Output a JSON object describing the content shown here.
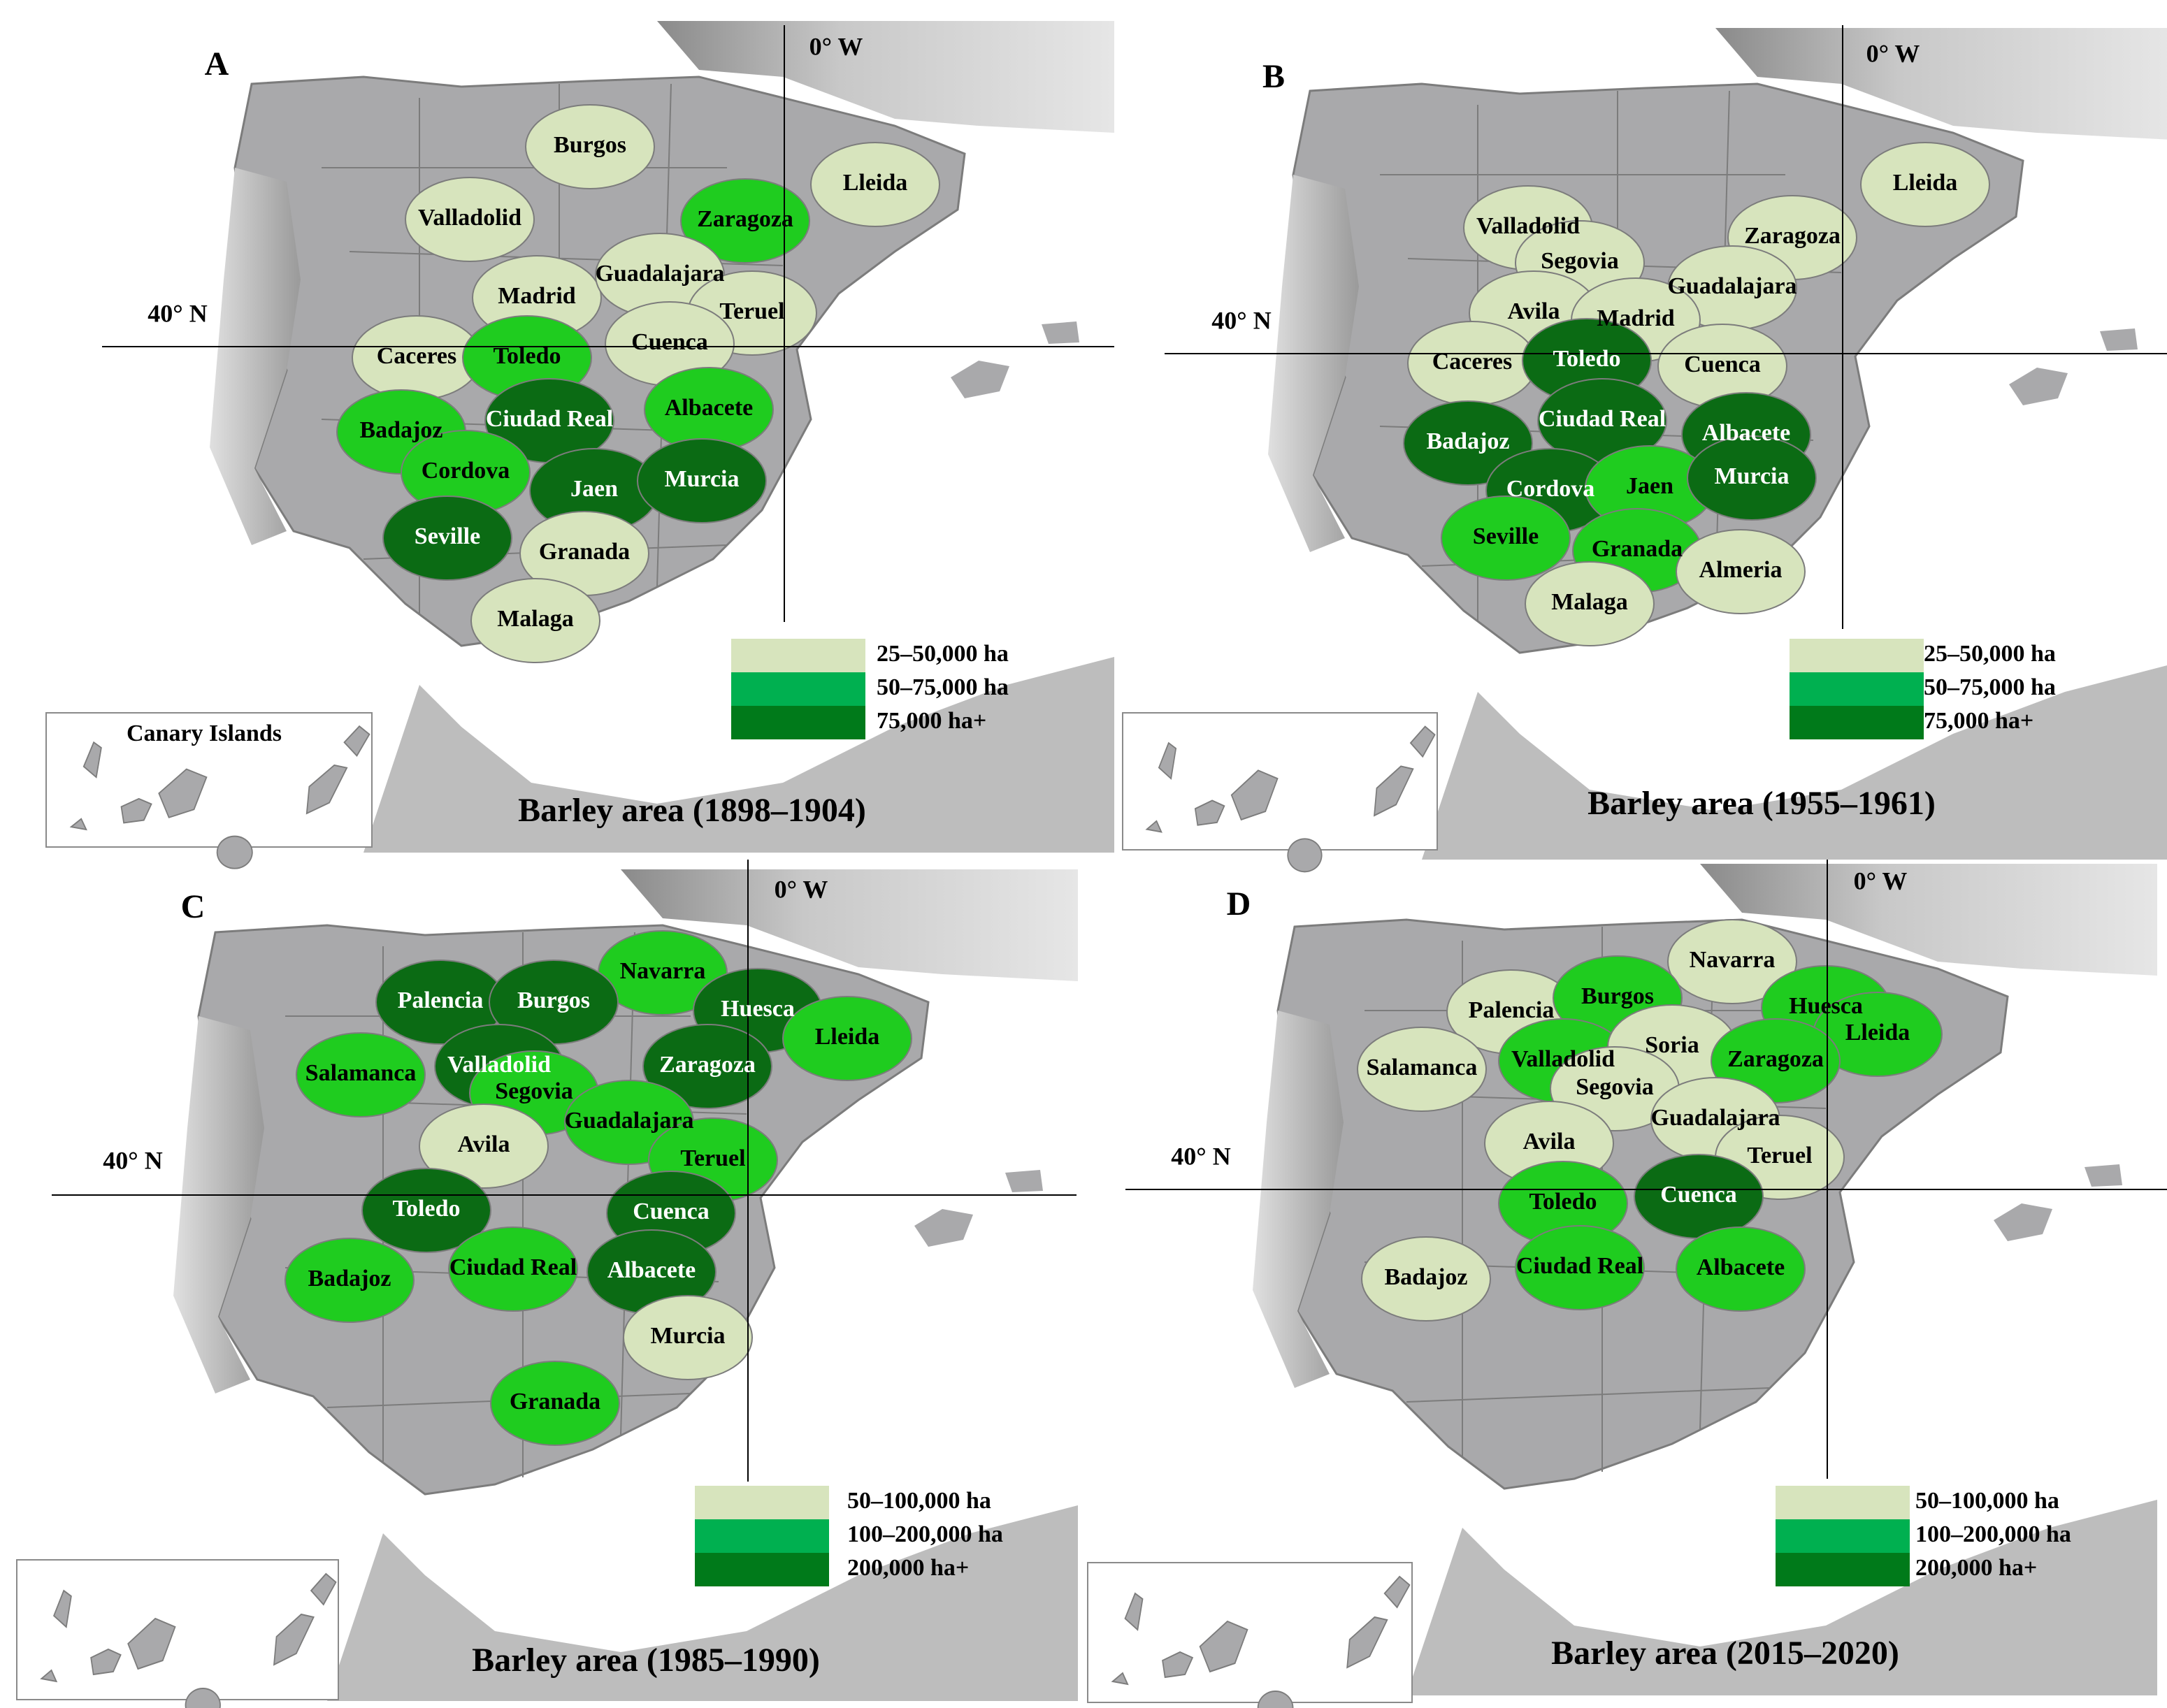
{
  "panels": [
    {
      "label": "A",
      "title": "Barley area (1898–1904)",
      "meridian_label": "0° W",
      "parallel_label": "40° N",
      "inset_label": "Canary Islands",
      "legend": [
        {
          "label": "25–50,000 ha",
          "color": "#d7e4bd"
        },
        {
          "label": "50–75,000 ha",
          "color": "#00b050"
        },
        {
          "label": "75,000 ha+",
          "color": "#007a1a"
        }
      ],
      "regions": [
        {
          "name": "Burgos",
          "color": "#d7e4bd"
        },
        {
          "name": "Lleida",
          "color": "#d7e4bd"
        },
        {
          "name": "Valladolid",
          "color": "#d7e4bd"
        },
        {
          "name": "Zaragoza",
          "color": "#1fcc1f"
        },
        {
          "name": "Madrid",
          "color": "#d7e4bd"
        },
        {
          "name": "Guadalajara",
          "color": "#d7e4bd"
        },
        {
          "name": "Teruel",
          "color": "#d7e4bd"
        },
        {
          "name": "Caceres",
          "color": "#d7e4bd"
        },
        {
          "name": "Toledo",
          "color": "#1fcc1f"
        },
        {
          "name": "Cuenca",
          "color": "#d7e4bd"
        },
        {
          "name": "Badajoz",
          "color": "#1fcc1f"
        },
        {
          "name": "Ciudad Real",
          "color": "#0b6b14"
        },
        {
          "name": "Albacete",
          "color": "#1fcc1f"
        },
        {
          "name": "Cordova",
          "color": "#1fcc1f"
        },
        {
          "name": "Jaen",
          "color": "#0b6b14"
        },
        {
          "name": "Murcia",
          "color": "#0b6b14"
        },
        {
          "name": "Seville",
          "color": "#0b6b14"
        },
        {
          "name": "Granada",
          "color": "#d7e4bd"
        },
        {
          "name": "Malaga",
          "color": "#d7e4bd"
        }
      ]
    },
    {
      "label": "B",
      "title": "Barley area (1955–1961)",
      "meridian_label": "0° W",
      "parallel_label": "40° N",
      "legend": [
        {
          "label": "25–50,000 ha",
          "color": "#d7e4bd"
        },
        {
          "label": "50–75,000 ha",
          "color": "#00b050"
        },
        {
          "label": "75,000 ha+",
          "color": "#007a1a"
        }
      ],
      "regions": [
        {
          "name": "Lleida",
          "color": "#d7e4bd"
        },
        {
          "name": "Valladolid",
          "color": "#d7e4bd"
        },
        {
          "name": "Zaragoza",
          "color": "#d7e4bd"
        },
        {
          "name": "Segovia",
          "color": "#d7e4bd"
        },
        {
          "name": "Guadalajara",
          "color": "#d7e4bd"
        },
        {
          "name": "Avila",
          "color": "#d7e4bd"
        },
        {
          "name": "Madrid",
          "color": "#d7e4bd"
        },
        {
          "name": "Caceres",
          "color": "#d7e4bd"
        },
        {
          "name": "Toledo",
          "color": "#0b6b14"
        },
        {
          "name": "Cuenca",
          "color": "#d7e4bd"
        },
        {
          "name": "Ciudad Real",
          "color": "#0b6b14"
        },
        {
          "name": "Badajoz",
          "color": "#0b6b14"
        },
        {
          "name": "Albacete",
          "color": "#0b6b14"
        },
        {
          "name": "Cordova",
          "color": "#0b6b14"
        },
        {
          "name": "Jaen",
          "color": "#1fcc1f"
        },
        {
          "name": "Murcia",
          "color": "#0b6b14"
        },
        {
          "name": "Seville",
          "color": "#1fcc1f"
        },
        {
          "name": "Granada",
          "color": "#1fcc1f"
        },
        {
          "name": "Almeria",
          "color": "#d7e4bd"
        },
        {
          "name": "Malaga",
          "color": "#d7e4bd"
        }
      ]
    },
    {
      "label": "C",
      "title": "Barley area (1985–1990)",
      "meridian_label": "0° W",
      "parallel_label": "40° N",
      "legend": [
        {
          "label": "50–100,000 ha",
          "color": "#d7e4bd"
        },
        {
          "label": "100–200,000 ha",
          "color": "#00b050"
        },
        {
          "label": "200,000 ha+",
          "color": "#007a1a"
        }
      ],
      "regions": [
        {
          "name": "Navarra",
          "color": "#1fcc1f"
        },
        {
          "name": "Palencia",
          "color": "#0b6b14"
        },
        {
          "name": "Burgos",
          "color": "#0b6b14"
        },
        {
          "name": "Huesca",
          "color": "#0b6b14"
        },
        {
          "name": "Lleida",
          "color": "#1fcc1f"
        },
        {
          "name": "Salamanca",
          "color": "#1fcc1f"
        },
        {
          "name": "Valladolid",
          "color": "#0b6b14"
        },
        {
          "name": "Segovia",
          "color": "#1fcc1f"
        },
        {
          "name": "Zaragoza",
          "color": "#0b6b14"
        },
        {
          "name": "Guadalajara",
          "color": "#1fcc1f"
        },
        {
          "name": "Avila",
          "color": "#d7e4bd"
        },
        {
          "name": "Teruel",
          "color": "#1fcc1f"
        },
        {
          "name": "Toledo",
          "color": "#0b6b14"
        },
        {
          "name": "Cuenca",
          "color": "#0b6b14"
        },
        {
          "name": "Badajoz",
          "color": "#1fcc1f"
        },
        {
          "name": "Ciudad Real",
          "color": "#1fcc1f"
        },
        {
          "name": "Albacete",
          "color": "#0b6b14"
        },
        {
          "name": "Murcia",
          "color": "#d7e4bd"
        },
        {
          "name": "Granada",
          "color": "#1fcc1f"
        }
      ]
    },
    {
      "label": "D",
      "title": "Barley area (2015–2020)",
      "meridian_label": "0° W",
      "parallel_label": "40° N",
      "legend": [
        {
          "label": "50–100,000 ha",
          "color": "#d7e4bd"
        },
        {
          "label": "100–200,000 ha",
          "color": "#00b050"
        },
        {
          "label": "200,000 ha+",
          "color": "#007a1a"
        }
      ],
      "regions": [
        {
          "name": "Navarra",
          "color": "#d7e4bd"
        },
        {
          "name": "Palencia",
          "color": "#d7e4bd"
        },
        {
          "name": "Burgos",
          "color": "#1fcc1f"
        },
        {
          "name": "Huesca",
          "color": "#1fcc1f"
        },
        {
          "name": "Lleida",
          "color": "#1fcc1f"
        },
        {
          "name": "Salamanca",
          "color": "#d7e4bd"
        },
        {
          "name": "Valladolid",
          "color": "#1fcc1f"
        },
        {
          "name": "Soria",
          "color": "#d7e4bd"
        },
        {
          "name": "Segovia",
          "color": "#d7e4bd"
        },
        {
          "name": "Zaragoza",
          "color": "#1fcc1f"
        },
        {
          "name": "Guadalajara",
          "color": "#d7e4bd"
        },
        {
          "name": "Avila",
          "color": "#d7e4bd"
        },
        {
          "name": "Teruel",
          "color": "#d7e4bd"
        },
        {
          "name": "Toledo",
          "color": "#1fcc1f"
        },
        {
          "name": "Cuenca",
          "color": "#0b6b14"
        },
        {
          "name": "Badajoz",
          "color": "#d7e4bd"
        },
        {
          "name": "Ciudad Real",
          "color": "#1fcc1f"
        },
        {
          "name": "Albacete",
          "color": "#1fcc1f"
        }
      ]
    }
  ]
}
